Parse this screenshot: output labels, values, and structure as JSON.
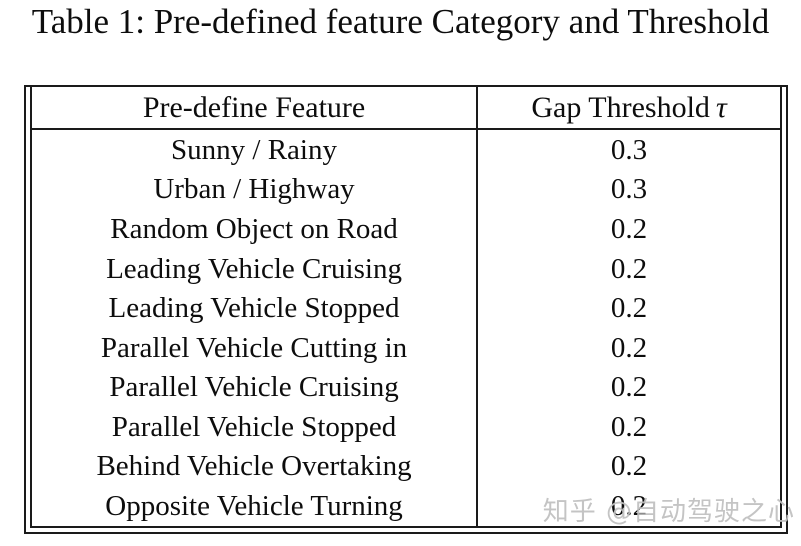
{
  "title": "Table 1: Pre-defined feature Category and Threshold",
  "table": {
    "columns": [
      {
        "label": "Pre-define Feature",
        "symbol": ""
      },
      {
        "label": "Gap Threshold",
        "symbol": "τ"
      }
    ],
    "rows": [
      {
        "feature": "Sunny / Rainy",
        "threshold": "0.3"
      },
      {
        "feature": "Urban / Highway",
        "threshold": "0.3"
      },
      {
        "feature": "Random Object on Road",
        "threshold": "0.2"
      },
      {
        "feature": "Leading Vehicle Cruising",
        "threshold": "0.2"
      },
      {
        "feature": "Leading Vehicle Stopped",
        "threshold": "0.2"
      },
      {
        "feature": "Parallel Vehicle Cutting in",
        "threshold": "0.2"
      },
      {
        "feature": "Parallel Vehicle Cruising",
        "threshold": "0.2"
      },
      {
        "feature": "Parallel Vehicle Stopped",
        "threshold": "0.2"
      },
      {
        "feature": "Behind Vehicle Overtaking",
        "threshold": "0.2"
      },
      {
        "feature": "Opposite Vehicle Turning",
        "threshold": "0.2"
      }
    ]
  },
  "watermark": {
    "text": "知乎 @自动驾驶之心"
  },
  "colors": {
    "text": "#0d0d0d",
    "border": "#1a1a1a",
    "watermark": "#c0c0c0",
    "background": "#ffffff"
  }
}
